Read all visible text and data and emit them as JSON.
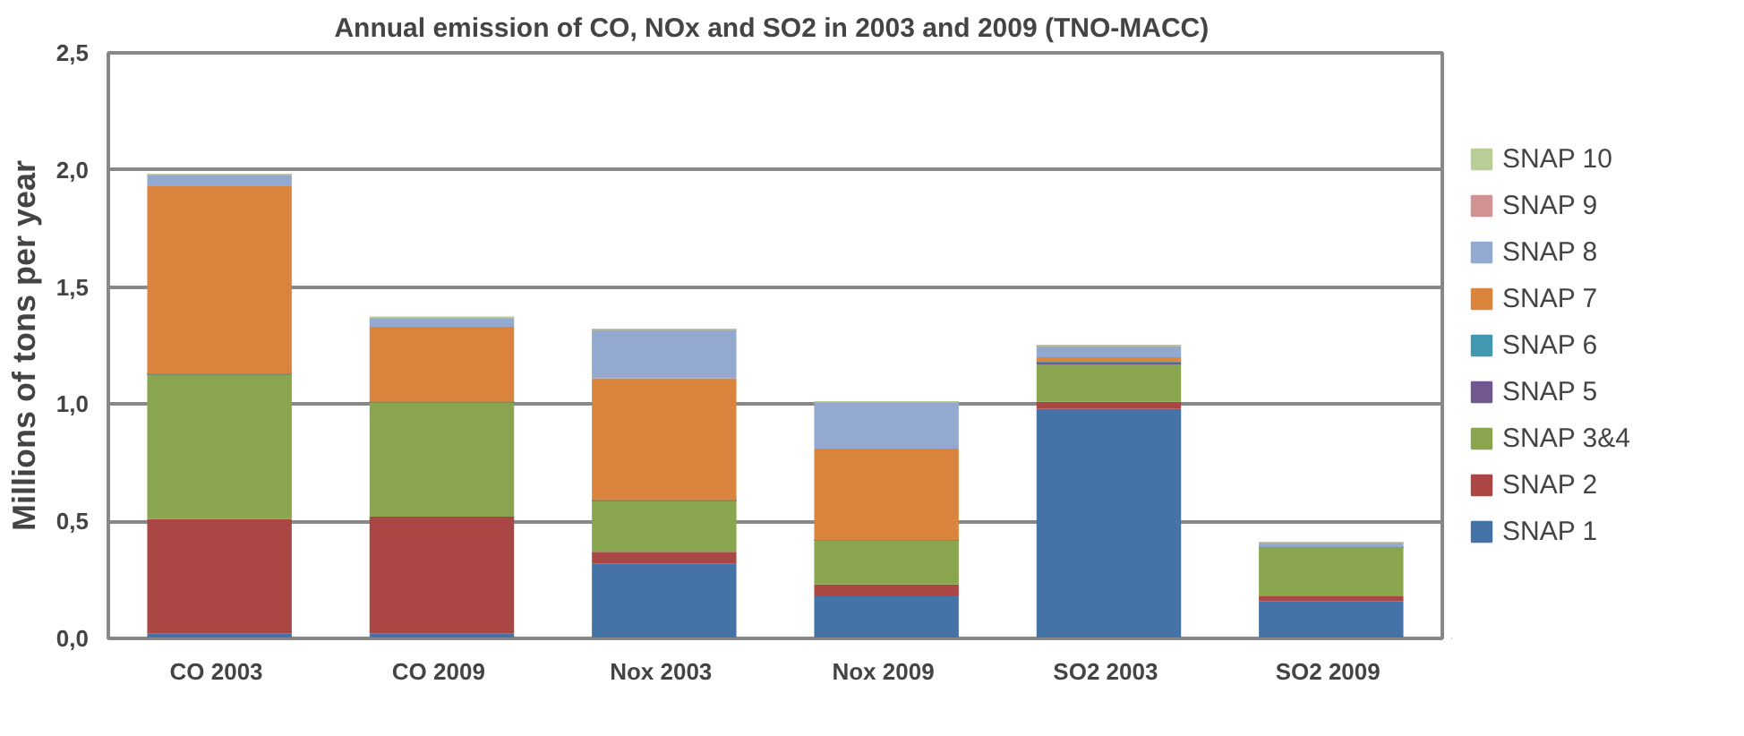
{
  "chart_data": {
    "type": "bar",
    "stacked": true,
    "title": "Annual emission of  CO, NOx and SO2 in 2003 and 2009 (TNO-MACC)",
    "ylabel": "Millions of tons per year",
    "categories": [
      "CO  2003",
      "CO  2009",
      "Nox  2003",
      "Nox  2009",
      "SO2  2003",
      "SO2  2009"
    ],
    "series": [
      {
        "name": "SNAP 1",
        "color": "#4572a7",
        "values": [
          0.02,
          0.02,
          0.32,
          0.18,
          0.98,
          0.16
        ]
      },
      {
        "name": "SNAP 2",
        "color": "#aa4643",
        "values": [
          0.49,
          0.5,
          0.05,
          0.05,
          0.03,
          0.02
        ]
      },
      {
        "name": "SNAP 3&4",
        "color": "#89a54e",
        "values": [
          0.62,
          0.49,
          0.22,
          0.19,
          0.16,
          0.21
        ]
      },
      {
        "name": "SNAP 5",
        "color": "#71588f",
        "values": [
          0,
          0,
          0,
          0,
          0.01,
          0
        ]
      },
      {
        "name": "SNAP 6",
        "color": "#4198af",
        "values": [
          0,
          0,
          0,
          0,
          0,
          0
        ]
      },
      {
        "name": "SNAP 7",
        "color": "#db843d",
        "values": [
          0.8,
          0.32,
          0.52,
          0.39,
          0.02,
          0
        ]
      },
      {
        "name": "SNAP 8",
        "color": "#93a9cf",
        "values": [
          0.05,
          0.04,
          0.21,
          0.2,
          0.05,
          0.02
        ]
      },
      {
        "name": "SNAP 9",
        "color": "#d19392",
        "values": [
          0,
          0,
          0,
          0,
          0,
          0
        ]
      },
      {
        "name": "SNAP 10",
        "color": "#b9cd96",
        "values": [
          0,
          0,
          0,
          0,
          0,
          0
        ]
      }
    ],
    "ylim": [
      0,
      2.5
    ],
    "yticks": [
      {
        "value": 0,
        "label": "0,0"
      },
      {
        "value": 0.5,
        "label": "0,5"
      },
      {
        "value": 1,
        "label": "1,0"
      },
      {
        "value": 1.5,
        "label": "1,5"
      },
      {
        "value": 2,
        "label": "2,0"
      },
      {
        "value": 2.5,
        "label": "2,5"
      }
    ],
    "grid": "y",
    "legend": "right"
  }
}
